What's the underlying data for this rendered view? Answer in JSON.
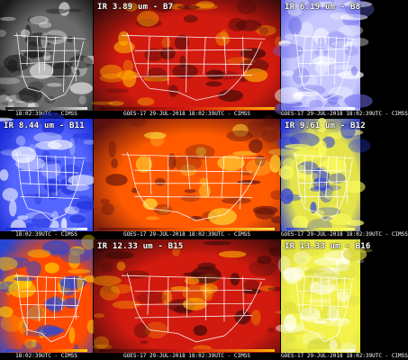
{
  "panels": [
    {
      "label": "",
      "footer": "18:02:39UTC - CIMSS",
      "scheme": "gray"
    },
    {
      "label": "IR 3.89 um - B7",
      "footer": "GOES-17 29-JUL-2018 18:02:39UTC - CIMSS",
      "scheme": "fire"
    },
    {
      "label": "IR 6.19 um - B8",
      "footer": "GOES-17 29-JUL-2018 18:02:39UTC - CIMSS",
      "scheme": "wv"
    },
    {
      "label": "IR 8.44 um - B11",
      "footer": "18:02:39UTC - CIMSS",
      "scheme": "blue"
    },
    {
      "label": "",
      "footer": "GOES-17 29-JUL-2018 18:02:39UTC - CIMSS",
      "scheme": "fire2"
    },
    {
      "label": "IR 9.61 um - B12",
      "footer": "GOES-17 29-JUL-2018 18:02:39UTC - CIMSS",
      "scheme": "yellowblue"
    },
    {
      "label": "",
      "footer": "18:02:39UTC - CIMSS",
      "scheme": "fire3"
    },
    {
      "label": "IR 12.33 um - B15",
      "footer": "GOES-17 29-JUL-2018 18:02:39UTC - CIMSS",
      "scheme": "fire"
    },
    {
      "label": "IR 13.33 um - B16",
      "footer": "GOES-17 29-JUL-2018 18:02:39UTC - CIMSS",
      "scheme": "yellow"
    }
  ],
  "colors": {
    "gray": [
      "#1a1a1a",
      "#6b6b6b",
      "#e6e6e6"
    ],
    "fire": [
      "#3a0a0a",
      "#d21a0f",
      "#ffb000"
    ],
    "fire2": [
      "#5a1010",
      "#ff5a00",
      "#ffe23a"
    ],
    "fire3": [
      "#2846d6",
      "#ff4a00",
      "#ffd000"
    ],
    "wv": [
      "#6a6ae8",
      "#c8c8ff",
      "#ffffff"
    ],
    "blue": [
      "#1a2ad6",
      "#5566ff",
      "#ffffff"
    ],
    "yellowblue": [
      "#2a3ae0",
      "#e4e44a",
      "#ffff60"
    ],
    "yellow": [
      "#d8d840",
      "#f2f24a",
      "#ffffff"
    ]
  }
}
